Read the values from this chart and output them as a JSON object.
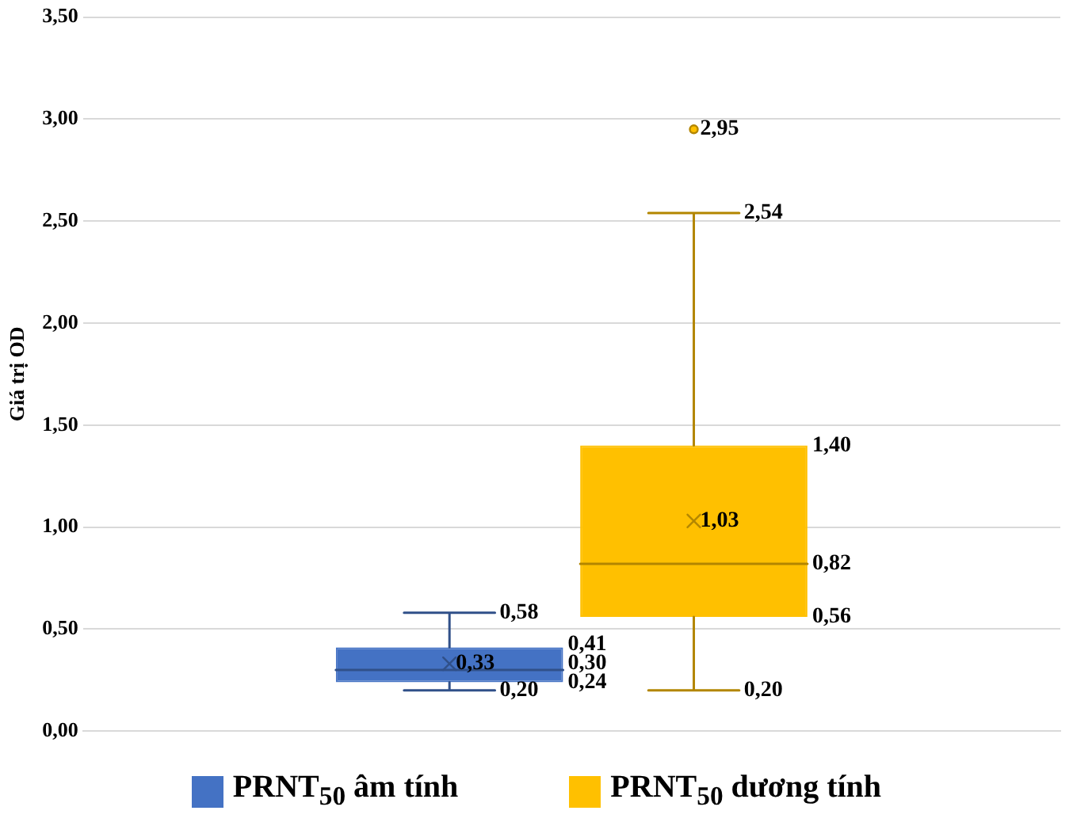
{
  "chart_data": {
    "type": "box",
    "ylabel": "Giá trị OD",
    "categories": [
      null
    ],
    "series": [
      {
        "name": "PRNT$_{50}$ âm tính",
        "color": "#4472c4",
        "boxes": [
          {
            "low": 0.2,
            "q1": 0.24,
            "median": 0.3,
            "q3": 0.41,
            "high": 0.58,
            "mean": 0.33
          }
        ]
      },
      {
        "name": "PRNT$_{50}$ dương tính",
        "color": "#ffc000",
        "boxes": [
          {
            "low": 0.2,
            "q1": 0.56,
            "median": 0.82,
            "q3": 1.4,
            "high": 2.54,
            "mean": 1.03,
            "outliers": [
              2.95
            ]
          }
        ]
      }
    ],
    "ylim": [
      0,
      3.5
    ],
    "yticks": [
      {
        "value": 0,
        "label": "0,00"
      },
      {
        "value": 0.5,
        "label": "0,50"
      },
      {
        "value": 1,
        "label": "1,00"
      },
      {
        "value": 1.5,
        "label": "1,50"
      },
      {
        "value": 2,
        "label": "2,00"
      },
      {
        "value": 2.5,
        "label": "2,50"
      },
      {
        "value": 3,
        "label": "3,00"
      },
      {
        "value": 3.5,
        "label": "3,50"
      }
    ],
    "grid": "y",
    "legend": "bottom",
    "marker": "cross",
    "annotations": [
      "0,58",
      "0,41",
      "0,33",
      "0,30",
      "0,24",
      "0,20",
      "2,95",
      "2,54",
      "1,40",
      "1,03",
      "0,82",
      "0,56",
      "0,20"
    ]
  }
}
